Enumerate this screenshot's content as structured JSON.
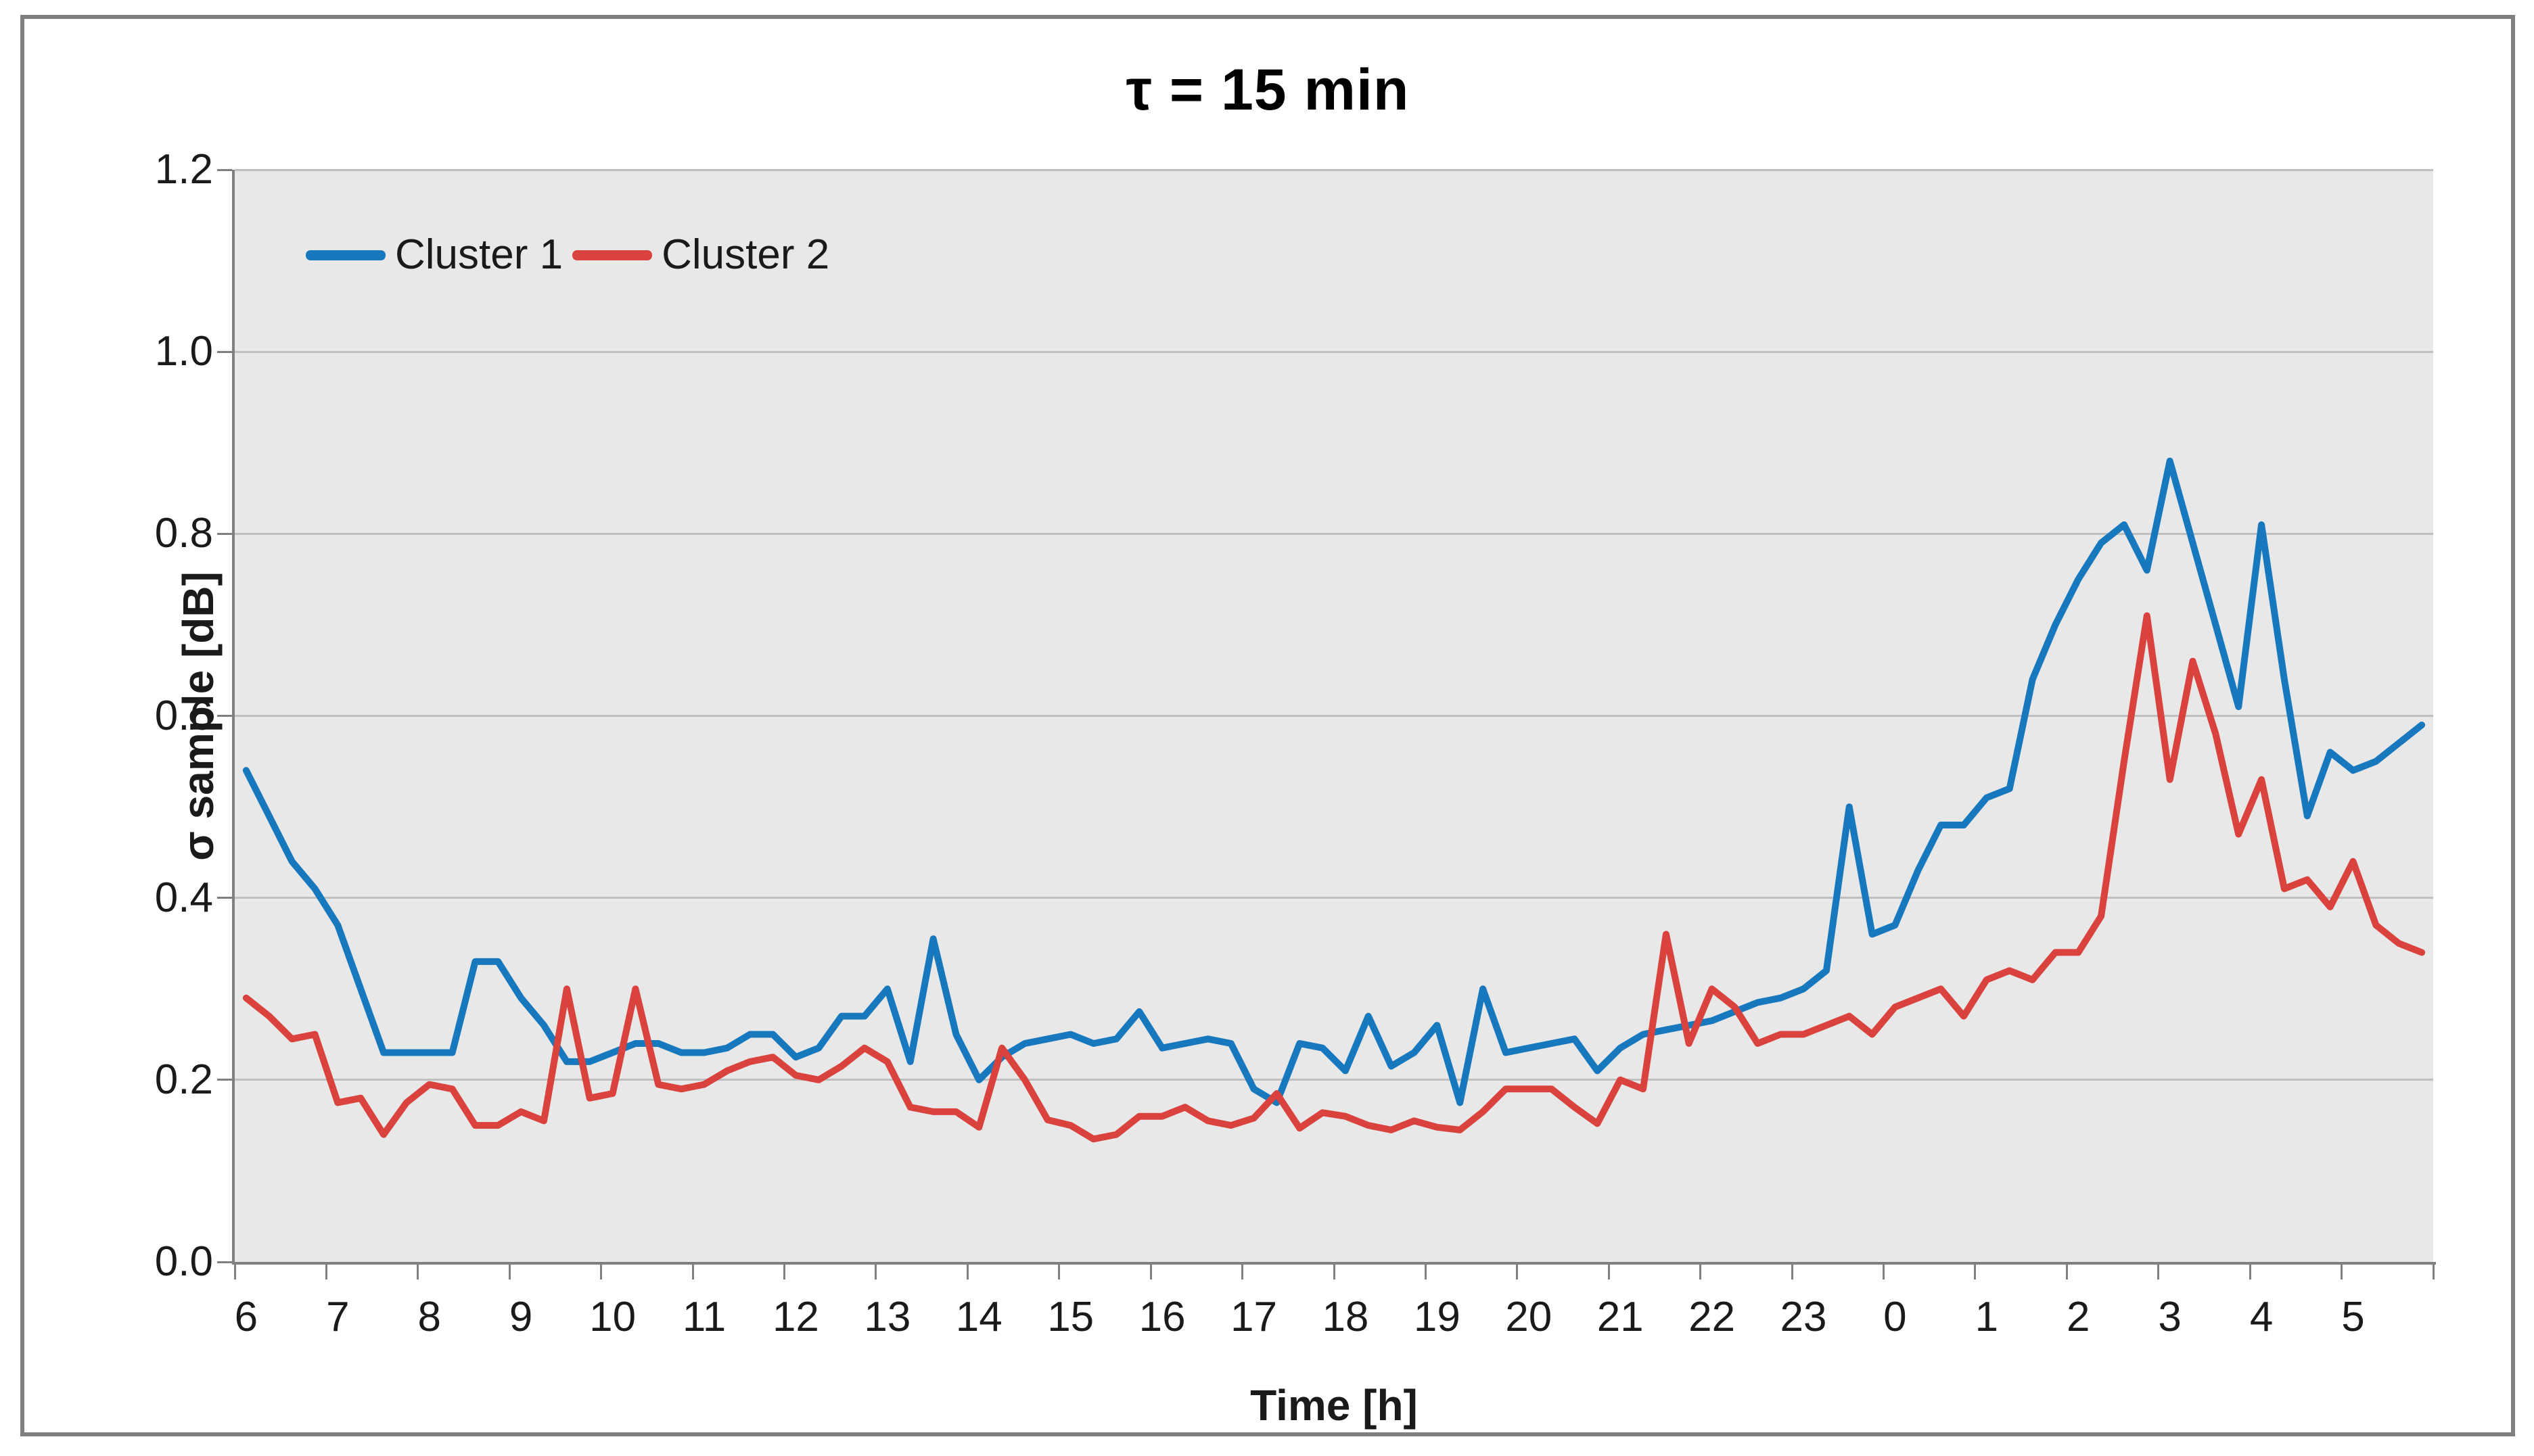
{
  "title": "τ = 15 min",
  "legend": {
    "items": [
      {
        "label": "Cluster 1",
        "color": "#1878be"
      },
      {
        "label": "Cluster 2",
        "color": "#d9423d"
      }
    ]
  },
  "y_axis": {
    "title": "σ sample [dB]",
    "tick_labels": [
      "0.0",
      "0.2",
      "0.4",
      "0.6",
      "0.8",
      "1.0",
      "1.2"
    ],
    "min": 0.0,
    "max": 1.2
  },
  "x_axis": {
    "title": "Time [h]",
    "tick_labels": [
      "6",
      "7",
      "8",
      "9",
      "10",
      "11",
      "12",
      "13",
      "14",
      "15",
      "16",
      "17",
      "18",
      "19",
      "20",
      "21",
      "22",
      "23",
      "0",
      "1",
      "2",
      "3",
      "4",
      "5"
    ]
  },
  "style": {
    "plot_background": "#e8e8e8",
    "gridline_color": "#bfbfbf",
    "axis_color": "#808080",
    "frame_border_color": "#7f7f7f",
    "text_color": "#1a1a1a"
  },
  "chart_data": {
    "type": "line",
    "title": "τ = 15 min",
    "xlabel": "Time [h]",
    "ylabel": "σ sample [dB]",
    "ylim": [
      0.0,
      1.2
    ],
    "grid": true,
    "legend_position": "top-left",
    "sample_interval_min": 15,
    "points_per_hour": 4,
    "categories_hours": [
      "6",
      "7",
      "8",
      "9",
      "10",
      "11",
      "12",
      "13",
      "14",
      "15",
      "16",
      "17",
      "18",
      "19",
      "20",
      "21",
      "22",
      "23",
      "0",
      "1",
      "2",
      "3",
      "4",
      "5"
    ],
    "series": [
      {
        "name": "Cluster 1",
        "color": "#1878be",
        "values": [
          0.54,
          0.49,
          0.44,
          0.41,
          0.37,
          0.3,
          0.23,
          0.23,
          0.23,
          0.23,
          0.33,
          0.33,
          0.29,
          0.26,
          0.22,
          0.22,
          0.23,
          0.24,
          0.24,
          0.23,
          0.23,
          0.235,
          0.25,
          0.25,
          0.225,
          0.235,
          0.27,
          0.27,
          0.3,
          0.22,
          0.355,
          0.25,
          0.2,
          0.225,
          0.24,
          0.245,
          0.25,
          0.24,
          0.245,
          0.275,
          0.235,
          0.24,
          0.245,
          0.24,
          0.19,
          0.175,
          0.24,
          0.235,
          0.21,
          0.27,
          0.215,
          0.23,
          0.26,
          0.175,
          0.3,
          0.23,
          0.235,
          0.24,
          0.245,
          0.21,
          0.235,
          0.25,
          0.255,
          0.26,
          0.265,
          0.275,
          0.285,
          0.29,
          0.3,
          0.32,
          0.5,
          0.36,
          0.37,
          0.43,
          0.48,
          0.48,
          0.51,
          0.52,
          0.64,
          0.7,
          0.75,
          0.79,
          0.81,
          0.76,
          0.88,
          0.79,
          0.7,
          0.61,
          0.81,
          0.64,
          0.49,
          0.56,
          0.54,
          0.55,
          0.57,
          0.59
        ]
      },
      {
        "name": "Cluster 2",
        "color": "#d9423d",
        "values": [
          0.29,
          0.27,
          0.245,
          0.25,
          0.175,
          0.18,
          0.14,
          0.175,
          0.195,
          0.19,
          0.15,
          0.15,
          0.165,
          0.155,
          0.3,
          0.18,
          0.185,
          0.3,
          0.195,
          0.19,
          0.195,
          0.21,
          0.22,
          0.225,
          0.205,
          0.2,
          0.215,
          0.235,
          0.22,
          0.17,
          0.165,
          0.165,
          0.148,
          0.235,
          0.2,
          0.156,
          0.15,
          0.135,
          0.14,
          0.16,
          0.16,
          0.17,
          0.155,
          0.15,
          0.158,
          0.185,
          0.147,
          0.164,
          0.16,
          0.15,
          0.145,
          0.155,
          0.148,
          0.145,
          0.165,
          0.19,
          0.19,
          0.19,
          0.17,
          0.152,
          0.2,
          0.19,
          0.36,
          0.24,
          0.3,
          0.28,
          0.24,
          0.25,
          0.25,
          0.26,
          0.27,
          0.25,
          0.28,
          0.29,
          0.3,
          0.27,
          0.31,
          0.32,
          0.31,
          0.34,
          0.34,
          0.38,
          0.55,
          0.71,
          0.53,
          0.66,
          0.58,
          0.47,
          0.53,
          0.41,
          0.42,
          0.39,
          0.44,
          0.37,
          0.35,
          0.34
        ]
      }
    ]
  }
}
